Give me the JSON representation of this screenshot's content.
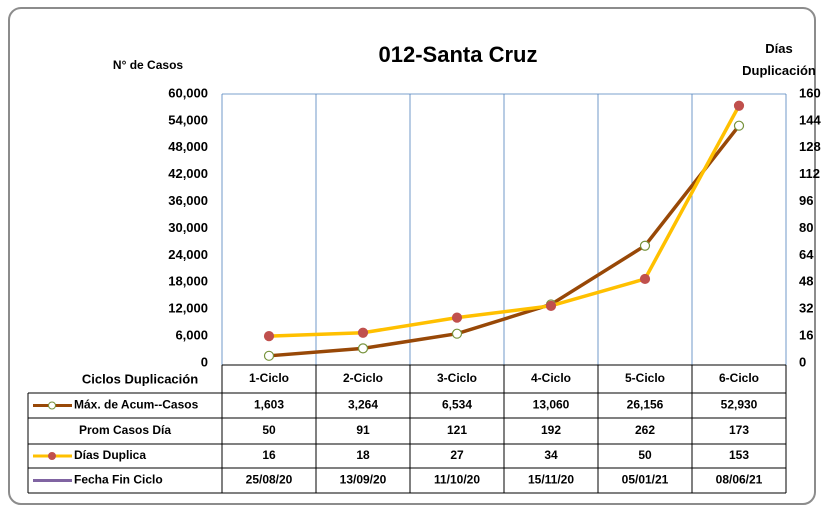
{
  "chart_data": {
    "type": "line",
    "title": "012-Santa Cruz",
    "y_label": "N° de Casos",
    "y2_label": "Días Duplicación",
    "x_label": "Ciclos Duplicación",
    "categories": [
      "1-Ciclo",
      "2-Ciclo",
      "3-Ciclo",
      "4-Ciclo",
      "5-Ciclo",
      "6-Ciclo"
    ],
    "ylim": [
      0,
      60000
    ],
    "yticks": [
      0,
      {
        "value": 6000,
        "label": "6,000"
      },
      {
        "value": 12000,
        "label": "12,000"
      },
      {
        "value": 18000,
        "label": "18,000"
      },
      {
        "value": 24000,
        "label": "24,000"
      },
      {
        "value": 30000,
        "label": "30,000"
      },
      {
        "value": 36000,
        "label": "36,000"
      },
      {
        "value": 42000,
        "label": "42,000"
      },
      {
        "value": 48000,
        "label": "48,000"
      },
      {
        "value": 54000,
        "label": "54,000"
      },
      {
        "value": 60000,
        "label": "60,000"
      }
    ],
    "y2lim": [
      0,
      160
    ],
    "y2ticks": [
      0,
      16,
      32,
      48,
      64,
      80,
      96,
      112,
      128,
      144,
      160
    ],
    "series": [
      {
        "name": "Máx. de Acum--Casos",
        "color": "#984807",
        "marker_color": "#ffffff",
        "values": [
          1603,
          3264,
          6534,
          13060,
          26156,
          52930
        ],
        "value_labels": [
          "1,603",
          "3,264",
          "6,534",
          "13,060",
          "26,156",
          "52,930"
        ]
      },
      {
        "name": "Prom Casos Día",
        "values": [
          50,
          91,
          121,
          192,
          262,
          173
        ]
      },
      {
        "name": "Días Duplica",
        "color": "#ffc000",
        "marker_color": "#c0504d",
        "axis": "y2",
        "values": [
          16,
          18,
          27,
          34,
          50,
          153
        ]
      },
      {
        "name": "Fecha Fin Ciclo",
        "color": "#8064a2",
        "values": [
          "25/08/20",
          "13/09/20",
          "11/10/20",
          "15/11/20",
          "05/01/21",
          "08/06/21"
        ]
      }
    ]
  }
}
